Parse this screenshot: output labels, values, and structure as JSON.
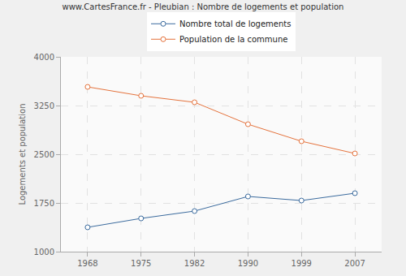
{
  "chart_data": {
    "type": "line",
    "title": "www.CartesFrance.fr - Pleubian : Nombre de logements et population",
    "y_label": "Logements et population",
    "categories": [
      "1968",
      "1975",
      "1982",
      "1990",
      "1999",
      "2007"
    ],
    "series": [
      {
        "name": "Nombre total de logements",
        "color": "#3b6b9e",
        "values": [
          1375,
          1512,
          1625,
          1850,
          1787,
          1900
        ]
      },
      {
        "name": "Population de la commune",
        "color": "#e5733d",
        "values": [
          3537,
          3400,
          3300,
          2962,
          2700,
          2512
        ]
      }
    ],
    "ylim": [
      1000,
      4000
    ],
    "yticks": [
      1000,
      1750,
      2500,
      3250,
      4000
    ],
    "grid": true,
    "legend": "top",
    "marker": "circle"
  }
}
